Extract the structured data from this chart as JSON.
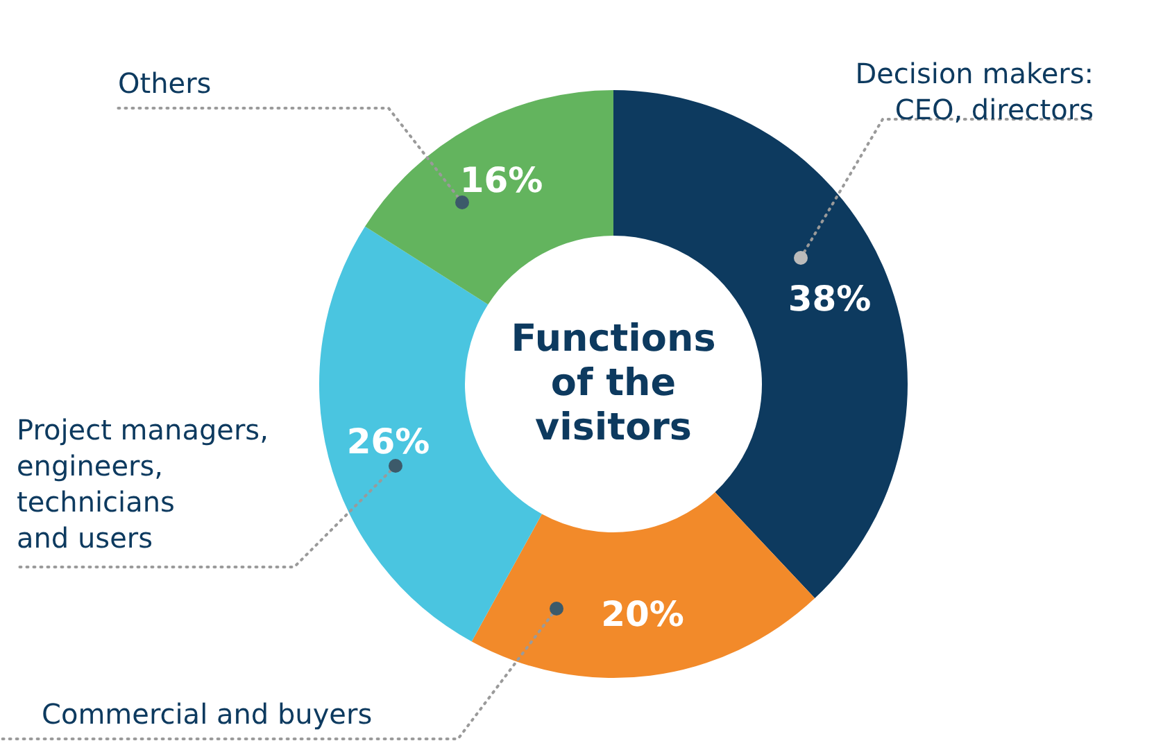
{
  "chart_data": {
    "type": "donut",
    "title": "Functions\nof the\nvisitors",
    "categories": [
      "Decision makers:\nCEO, directors",
      "Commercial and buyers",
      "Project managers,\nengineers,\ntechnicians\nand users",
      "Others"
    ],
    "values": [
      38,
      20,
      26,
      16
    ],
    "value_labels": [
      "38%",
      "20%",
      "26%",
      "16%"
    ],
    "colors": [
      "#0d3a5f",
      "#f28a2a",
      "#4ac5e0",
      "#63b45e"
    ]
  }
}
